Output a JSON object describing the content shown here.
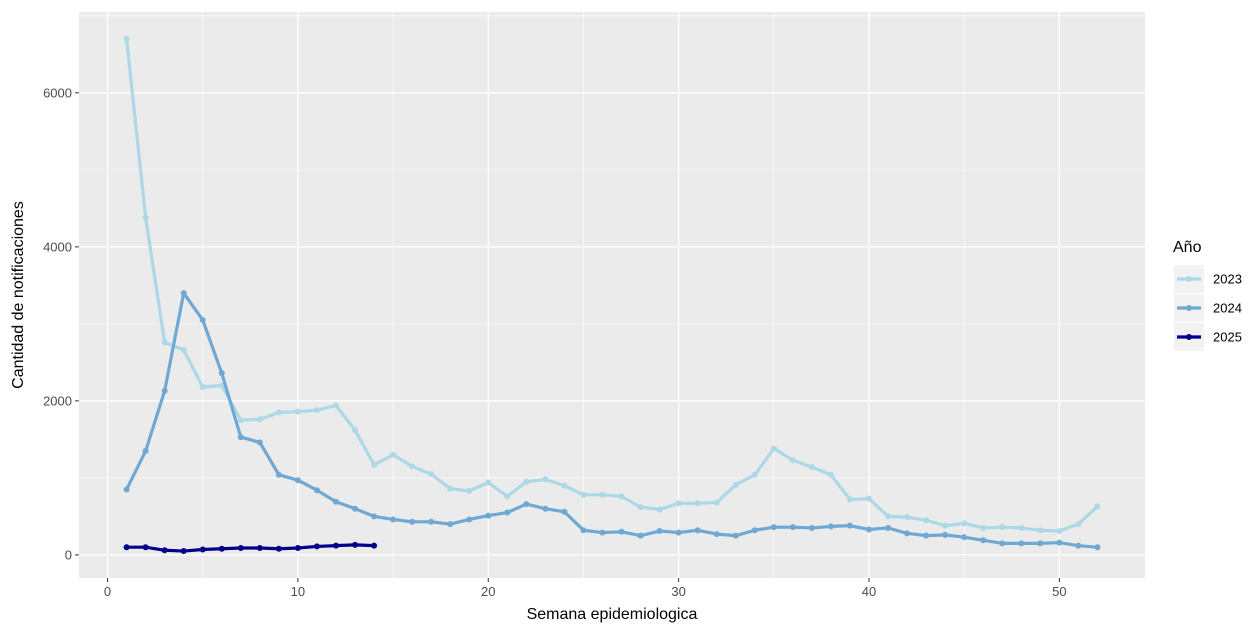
{
  "chart_data": {
    "type": "line",
    "title": "",
    "xlabel": "Semana epidemiologica",
    "ylabel": "Cantidad de notificaciones",
    "xlim": [
      -1.5,
      54.5
    ],
    "ylim": [
      -300,
      7050
    ],
    "x_ticks": [
      0,
      10,
      20,
      30,
      40,
      50
    ],
    "y_ticks": [
      0,
      2000,
      4000,
      6000
    ],
    "grid": true,
    "legend": {
      "title": "Año",
      "position": "right"
    },
    "series": [
      {
        "name": "2023",
        "color": "#add8e6",
        "x": [
          1,
          2,
          3,
          4,
          5,
          6,
          7,
          8,
          9,
          10,
          11,
          12,
          13,
          14,
          15,
          16,
          17,
          18,
          19,
          20,
          21,
          22,
          23,
          24,
          25,
          26,
          27,
          28,
          29,
          30,
          31,
          32,
          33,
          34,
          35,
          36,
          37,
          38,
          39,
          40,
          41,
          42,
          43,
          44,
          45,
          46,
          47,
          48,
          49,
          50,
          51,
          52
        ],
        "values": [
          6700,
          4380,
          2760,
          2660,
          2180,
          2200,
          1750,
          1760,
          1850,
          1860,
          1880,
          1940,
          1620,
          1170,
          1300,
          1150,
          1050,
          860,
          830,
          940,
          760,
          950,
          980,
          900,
          780,
          780,
          760,
          620,
          590,
          670,
          670,
          680,
          910,
          1040,
          1380,
          1230,
          1140,
          1040,
          720,
          730,
          500,
          490,
          450,
          380,
          410,
          350,
          360,
          350,
          320,
          310,
          400,
          630
        ]
      },
      {
        "name": "2024",
        "color": "#6fa8d2",
        "x": [
          1,
          2,
          3,
          4,
          5,
          6,
          7,
          8,
          9,
          10,
          11,
          12,
          13,
          14,
          15,
          16,
          17,
          18,
          19,
          20,
          21,
          22,
          23,
          24,
          25,
          26,
          27,
          28,
          29,
          30,
          31,
          32,
          33,
          34,
          35,
          36,
          37,
          38,
          39,
          40,
          41,
          42,
          43,
          44,
          45,
          46,
          47,
          48,
          49,
          50,
          51,
          52
        ],
        "values": [
          850,
          1350,
          2130,
          3400,
          3050,
          2360,
          1530,
          1460,
          1040,
          970,
          840,
          690,
          600,
          500,
          460,
          430,
          430,
          400,
          460,
          510,
          550,
          660,
          600,
          560,
          320,
          290,
          300,
          250,
          310,
          290,
          320,
          270,
          250,
          320,
          360,
          360,
          350,
          370,
          380,
          330,
          350,
          280,
          250,
          260,
          230,
          190,
          150,
          150,
          150,
          160,
          120,
          100
        ]
      },
      {
        "name": "2025",
        "color": "#00008b",
        "x": [
          1,
          2,
          3,
          4,
          5,
          6,
          7,
          8,
          9,
          10,
          11,
          12,
          13,
          14
        ],
        "values": [
          100,
          100,
          60,
          50,
          70,
          80,
          90,
          90,
          80,
          90,
          110,
          120,
          130,
          120
        ]
      }
    ]
  }
}
